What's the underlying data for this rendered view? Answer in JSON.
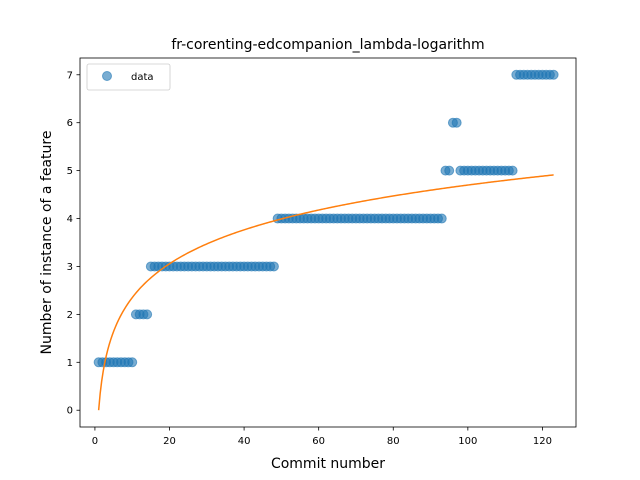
{
  "chart_data": {
    "type": "scatter",
    "title": "fr-corenting-edcompanion_lambda-logarithm",
    "xlabel": "Commit number",
    "ylabel": "Number of instance of a feature",
    "xlim": [
      -4,
      129
    ],
    "ylim": [
      -0.35,
      7.35
    ],
    "xticks": [
      0,
      20,
      40,
      60,
      80,
      100,
      120
    ],
    "yticks": [
      0,
      1,
      2,
      3,
      4,
      5,
      6,
      7
    ],
    "grid": false,
    "legend": {
      "position": "top-left",
      "entries": [
        "data"
      ]
    },
    "colors": {
      "data": "#1f77b4",
      "fit": "#ff7f0e"
    },
    "series": [
      {
        "name": "data",
        "kind": "scatter",
        "segments": [
          {
            "x_start": 1,
            "x_end": 10,
            "y": 1
          },
          {
            "x_start": 11,
            "x_end": 14,
            "y": 2
          },
          {
            "x_start": 15,
            "x_end": 48,
            "y": 3
          },
          {
            "x_start": 49,
            "x_end": 93,
            "y": 4
          },
          {
            "x_start": 94,
            "x_end": 95,
            "y": 5
          },
          {
            "x_start": 96,
            "x_end": 97,
            "y": 6
          },
          {
            "x_start": 98,
            "x_end": 112,
            "y": 5
          },
          {
            "x_start": 113,
            "x_end": 123,
            "y": 7
          }
        ]
      },
      {
        "kind": "line",
        "model": "logarithm",
        "x_range": [
          1,
          123
        ],
        "description_points": [
          [
            1,
            0
          ],
          [
            10,
            2.35
          ],
          [
            20,
            3.06
          ],
          [
            40,
            3.77
          ],
          [
            60,
            4.18
          ],
          [
            80,
            4.48
          ],
          [
            100,
            4.71
          ],
          [
            123,
            4.91
          ]
        ]
      }
    ]
  }
}
